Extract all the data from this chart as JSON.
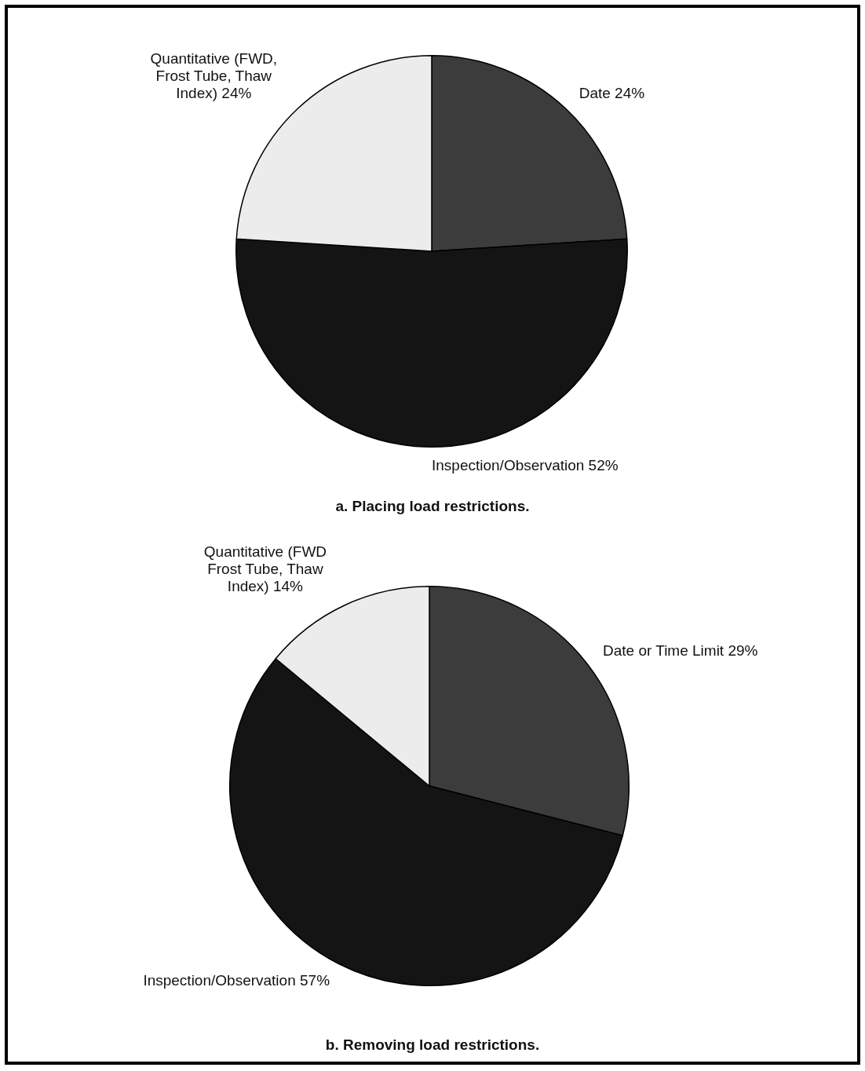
{
  "chart_data": [
    {
      "type": "pie",
      "title": "a. Placing load restrictions.",
      "categories": [
        "Date",
        "Inspection/Observation",
        "Quantitative (FWD, Frost Tube, Thaw Index)"
      ],
      "values": [
        24,
        52,
        24
      ],
      "value_labels": [
        "24%",
        "52%",
        "24%"
      ],
      "colors": [
        "#3c3c3c",
        "#141414",
        "#ececec"
      ],
      "legend": false
    },
    {
      "type": "pie",
      "title": "b. Removing load restrictions.",
      "categories": [
        "Date or Time Limit",
        "Inspection/Observation",
        "Quantitative (FWD Frost Tube, Thaw Index)"
      ],
      "values": [
        29,
        57,
        14
      ],
      "value_labels": [
        "29%",
        "57%",
        "14%"
      ],
      "colors": [
        "#3c3c3c",
        "#141414",
        "#ececec"
      ],
      "legend": false
    }
  ]
}
